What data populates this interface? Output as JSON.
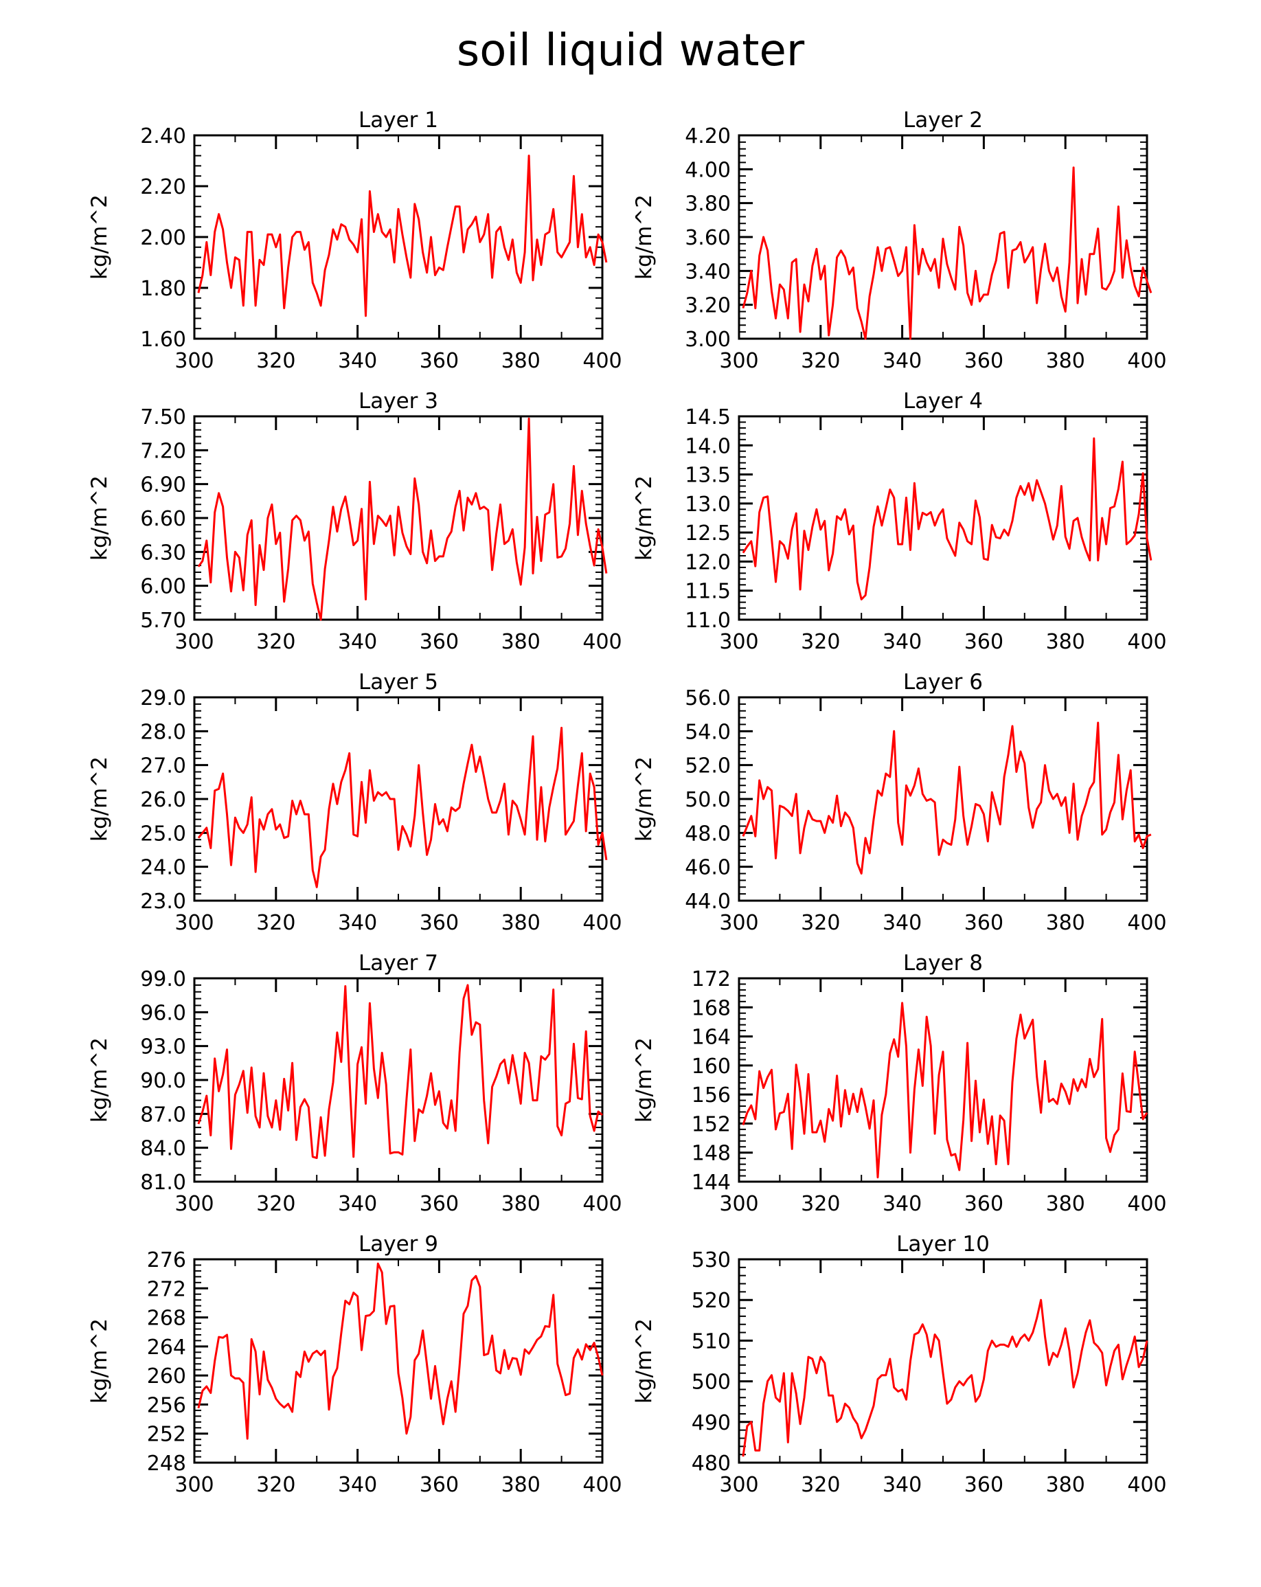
{
  "figure": {
    "title": "soil liquid water",
    "footer": ""
  },
  "colors": {
    "line": "#ff0000",
    "axes": "#000000"
  },
  "chart_data": [
    {
      "type": "line",
      "title": "Layer 1",
      "ylabel": "kg/m^2",
      "xlim": [
        300,
        400
      ],
      "ylim": [
        1.6,
        2.4
      ],
      "xticks": [
        300,
        320,
        340,
        360,
        380,
        400
      ],
      "yticks": [
        "1.60",
        "1.80",
        "2.00",
        "2.20",
        "2.40"
      ],
      "x_start": 301,
      "x_step": 1,
      "values": [
        1.78,
        1.85,
        1.98,
        1.85,
        2.02,
        2.09,
        2.03,
        1.9,
        1.8,
        1.92,
        1.91,
        1.73,
        2.02,
        2.02,
        1.73,
        1.91,
        1.89,
        2.01,
        2.01,
        1.96,
        2.01,
        1.72,
        1.88,
        2.0,
        2.02,
        2.02,
        1.95,
        1.98,
        1.82,
        1.78,
        1.73,
        1.87,
        1.93,
        2.03,
        1.99,
        2.05,
        2.04,
        1.99,
        1.97,
        1.94,
        2.07,
        1.69,
        2.18,
        2.02,
        2.09,
        2.02,
        2.0,
        2.03,
        1.9,
        2.11,
        2.01,
        1.92,
        1.84,
        2.13,
        2.07,
        1.94,
        1.86,
        2.0,
        1.85,
        1.88,
        1.87,
        1.96,
        2.04,
        2.12,
        2.12,
        1.94,
        2.03,
        2.05,
        2.08,
        1.98,
        2.01,
        2.09,
        1.84,
        2.02,
        2.04,
        1.96,
        1.91,
        1.99,
        1.86,
        1.82,
        1.94,
        2.32,
        1.83,
        1.99,
        1.89,
        2.01,
        2.02,
        2.11,
        1.94,
        1.92,
        1.95,
        1.98,
        2.24,
        1.96,
        2.09,
        1.92,
        1.96,
        1.89,
        2.01,
        1.98,
        1.9
      ]
    },
    {
      "type": "line",
      "title": "Layer 2",
      "ylabel": "kg/m^2",
      "xlim": [
        300,
        400
      ],
      "ylim": [
        3.0,
        4.2
      ],
      "xticks": [
        300,
        320,
        340,
        360,
        380,
        400
      ],
      "yticks": [
        "3.00",
        "3.20",
        "3.40",
        "3.60",
        "3.80",
        "4.00",
        "4.20"
      ],
      "x_start": 301,
      "x_step": 1,
      "values": [
        3.18,
        3.27,
        3.4,
        3.18,
        3.49,
        3.6,
        3.52,
        3.28,
        3.12,
        3.32,
        3.29,
        3.12,
        3.45,
        3.47,
        3.04,
        3.32,
        3.22,
        3.43,
        3.53,
        3.35,
        3.43,
        3.02,
        3.2,
        3.48,
        3.52,
        3.48,
        3.38,
        3.42,
        3.18,
        3.1,
        3.0,
        3.25,
        3.38,
        3.54,
        3.4,
        3.53,
        3.54,
        3.46,
        3.37,
        3.4,
        3.54,
        3.0,
        3.67,
        3.38,
        3.53,
        3.45,
        3.4,
        3.47,
        3.3,
        3.59,
        3.44,
        3.36,
        3.29,
        3.66,
        3.55,
        3.27,
        3.2,
        3.4,
        3.22,
        3.26,
        3.26,
        3.38,
        3.46,
        3.62,
        3.63,
        3.3,
        3.52,
        3.53,
        3.57,
        3.45,
        3.49,
        3.54,
        3.21,
        3.41,
        3.56,
        3.4,
        3.34,
        3.42,
        3.25,
        3.16,
        3.45,
        4.01,
        3.21,
        3.47,
        3.26,
        3.5,
        3.5,
        3.65,
        3.3,
        3.29,
        3.33,
        3.4,
        3.78,
        3.36,
        3.58,
        3.42,
        3.31,
        3.25,
        3.42,
        3.34,
        3.27
      ]
    },
    {
      "type": "line",
      "title": "Layer 3",
      "ylabel": "kg/m^2",
      "xlim": [
        300,
        400
      ],
      "ylim": [
        5.7,
        7.5
      ],
      "xticks": [
        300,
        320,
        340,
        360,
        380,
        400
      ],
      "yticks": [
        "5.70",
        "6.00",
        "6.30",
        "6.60",
        "6.90",
        "7.20",
        "7.50"
      ],
      "x_start": 301,
      "x_step": 1,
      "values": [
        6.17,
        6.22,
        6.4,
        6.03,
        6.65,
        6.82,
        6.7,
        6.25,
        5.95,
        6.3,
        6.25,
        5.96,
        6.45,
        6.58,
        5.83,
        6.36,
        6.14,
        6.6,
        6.72,
        6.37,
        6.47,
        5.86,
        6.15,
        6.58,
        6.62,
        6.58,
        6.4,
        6.48,
        6.02,
        5.85,
        5.7,
        6.15,
        6.4,
        6.7,
        6.48,
        6.68,
        6.79,
        6.59,
        6.36,
        6.4,
        6.68,
        5.88,
        6.92,
        6.37,
        6.62,
        6.58,
        6.53,
        6.62,
        6.27,
        6.7,
        6.47,
        6.35,
        6.28,
        6.95,
        6.72,
        6.3,
        6.2,
        6.49,
        6.22,
        6.26,
        6.26,
        6.42,
        6.48,
        6.7,
        6.84,
        6.49,
        6.78,
        6.72,
        6.82,
        6.68,
        6.7,
        6.67,
        6.14,
        6.46,
        6.72,
        6.37,
        6.4,
        6.5,
        6.21,
        6.01,
        6.34,
        7.48,
        6.11,
        6.61,
        6.22,
        6.63,
        6.65,
        6.9,
        6.25,
        6.26,
        6.33,
        6.55,
        7.06,
        6.45,
        6.84,
        6.55,
        6.35,
        6.18,
        6.5,
        6.34,
        6.11
      ]
    },
    {
      "type": "line",
      "title": "Layer 4",
      "ylabel": "kg/m^2",
      "xlim": [
        300,
        400
      ],
      "ylim": [
        11.0,
        14.5
      ],
      "xticks": [
        300,
        320,
        340,
        360,
        380,
        400
      ],
      "yticks": [
        "11.0",
        "11.5",
        "12.0",
        "12.5",
        "13.0",
        "13.5",
        "14.0",
        "14.5"
      ],
      "x_start": 301,
      "x_step": 1,
      "values": [
        12.15,
        12.26,
        12.35,
        11.92,
        12.85,
        13.1,
        13.12,
        12.4,
        11.65,
        12.35,
        12.28,
        12.05,
        12.56,
        12.83,
        11.52,
        12.53,
        12.2,
        12.6,
        12.9,
        12.55,
        12.7,
        11.85,
        12.14,
        12.78,
        12.72,
        12.9,
        12.47,
        12.62,
        11.65,
        11.35,
        11.42,
        11.9,
        12.6,
        12.95,
        12.62,
        12.92,
        13.24,
        13.1,
        12.3,
        12.3,
        13.1,
        12.2,
        13.35,
        12.56,
        12.84,
        12.8,
        12.85,
        12.62,
        12.8,
        12.9,
        12.4,
        12.25,
        12.1,
        12.67,
        12.55,
        12.35,
        12.3,
        13.05,
        12.76,
        12.05,
        12.03,
        12.63,
        12.42,
        12.4,
        12.55,
        12.45,
        12.7,
        13.1,
        13.3,
        13.15,
        13.35,
        13.05,
        13.4,
        13.2,
        13.0,
        12.7,
        12.38,
        12.62,
        13.3,
        12.43,
        12.22,
        12.7,
        12.75,
        12.42,
        12.2,
        12.02,
        14.12,
        12.02,
        12.75,
        12.3,
        12.92,
        12.95,
        13.25,
        13.72,
        12.3,
        12.36,
        12.45,
        12.82,
        13.52,
        12.4,
        12.02
      ]
    },
    {
      "type": "line",
      "title": "Layer 5",
      "ylabel": "kg/m^2",
      "xlim": [
        300,
        400
      ],
      "ylim": [
        23.0,
        29.0
      ],
      "xticks": [
        300,
        320,
        340,
        360,
        380,
        400
      ],
      "yticks": [
        "23.0",
        "24.0",
        "25.0",
        "26.0",
        "27.0",
        "28.0",
        "29.0"
      ],
      "x_start": 301,
      "x_step": 1,
      "values": [
        24.85,
        25.0,
        25.15,
        24.55,
        26.25,
        26.3,
        26.75,
        25.55,
        24.05,
        25.45,
        25.15,
        25.0,
        25.25,
        26.05,
        23.85,
        25.4,
        25.1,
        25.55,
        25.7,
        25.1,
        25.25,
        24.85,
        24.9,
        25.95,
        25.55,
        25.95,
        25.55,
        25.55,
        23.9,
        23.4,
        24.3,
        24.5,
        25.7,
        26.45,
        25.85,
        26.5,
        26.85,
        27.35,
        24.95,
        24.9,
        26.5,
        25.3,
        26.85,
        25.95,
        26.2,
        26.1,
        26.2,
        26.0,
        26.0,
        24.5,
        25.2,
        24.95,
        24.6,
        25.5,
        27.0,
        25.6,
        24.35,
        24.8,
        25.85,
        25.25,
        25.4,
        25.05,
        25.75,
        25.65,
        25.75,
        26.45,
        27.05,
        27.6,
        26.8,
        27.25,
        26.65,
        26.0,
        25.6,
        25.6,
        25.95,
        26.45,
        24.95,
        25.95,
        25.8,
        25.4,
        24.95,
        26.45,
        27.85,
        24.8,
        26.35,
        24.75,
        25.75,
        26.35,
        26.9,
        28.1,
        24.95,
        25.15,
        25.35,
        26.4,
        27.35,
        25.05,
        26.75,
        26.35,
        24.65,
        25.0,
        24.2
      ]
    },
    {
      "type": "line",
      "title": "Layer 6",
      "ylabel": "kg/m^2",
      "xlim": [
        300,
        400
      ],
      "ylim": [
        44.0,
        56.0
      ],
      "xticks": [
        300,
        320,
        340,
        360,
        380,
        400
      ],
      "yticks": [
        "44.0",
        "46.0",
        "48.0",
        "50.0",
        "52.0",
        "54.0",
        "56.0"
      ],
      "x_start": 301,
      "x_step": 1,
      "values": [
        47.8,
        48.4,
        49.0,
        47.8,
        51.1,
        50.0,
        50.7,
        50.5,
        46.5,
        49.6,
        49.5,
        49.3,
        49.0,
        50.3,
        46.8,
        48.3,
        49.3,
        48.8,
        48.7,
        48.7,
        48.0,
        49.0,
        48.6,
        50.2,
        48.4,
        49.2,
        48.9,
        48.3,
        46.2,
        45.6,
        47.7,
        46.8,
        48.8,
        50.5,
        50.2,
        51.5,
        51.3,
        54.0,
        48.6,
        47.3,
        50.8,
        50.2,
        50.8,
        51.8,
        50.3,
        49.9,
        50.0,
        49.8,
        46.7,
        47.6,
        47.4,
        47.3,
        48.8,
        51.9,
        49.0,
        47.3,
        48.4,
        49.7,
        49.6,
        49.1,
        47.5,
        50.4,
        49.5,
        48.5,
        51.3,
        52.6,
        54.3,
        51.6,
        52.8,
        52.1,
        49.5,
        48.3,
        49.4,
        49.8,
        52.0,
        50.5,
        50.0,
        50.3,
        49.6,
        50.1,
        48.0,
        50.9,
        47.6,
        49.0,
        49.7,
        50.6,
        51.0,
        54.5,
        47.9,
        48.2,
        49.2,
        49.8,
        52.6,
        48.8,
        50.5,
        51.7,
        47.5,
        47.9,
        47.1,
        47.8,
        47.9
      ]
    },
    {
      "type": "line",
      "title": "Layer 7",
      "ylabel": "kg/m^2",
      "xlim": [
        300,
        400
      ],
      "ylim": [
        81.0,
        99.0
      ],
      "xticks": [
        300,
        320,
        340,
        360,
        380,
        400
      ],
      "yticks": [
        "81.0",
        "84.0",
        "87.0",
        "90.0",
        "93.0",
        "96.0",
        "99.0"
      ],
      "x_start": 301,
      "x_step": 1,
      "values": [
        86.1,
        87.2,
        88.6,
        85.1,
        91.9,
        89.0,
        90.5,
        92.7,
        83.9,
        88.7,
        89.6,
        90.8,
        87.1,
        91.1,
        86.8,
        85.8,
        90.6,
        86.8,
        85.8,
        88.2,
        85.6,
        90.1,
        87.3,
        91.5,
        84.7,
        87.6,
        88.3,
        87.6,
        83.2,
        83.1,
        86.7,
        83.3,
        87.4,
        89.8,
        94.2,
        91.6,
        98.3,
        90.3,
        83.2,
        91.4,
        92.9,
        87.9,
        96.8,
        91.0,
        88.4,
        92.4,
        89.6,
        83.5,
        83.6,
        83.6,
        83.4,
        88.3,
        92.7,
        84.6,
        87.4,
        87.1,
        88.6,
        90.6,
        87.8,
        89.0,
        86.2,
        85.7,
        88.2,
        85.5,
        92.4,
        97.2,
        98.4,
        94.0,
        95.1,
        94.9,
        88.2,
        84.4,
        89.4,
        90.3,
        91.4,
        91.8,
        89.7,
        92.2,
        90.2,
        87.9,
        92.4,
        91.5,
        88.2,
        88.2,
        92.1,
        91.8,
        92.3,
        98.0,
        85.9,
        85.1,
        87.9,
        88.1,
        93.2,
        88.4,
        88.3,
        94.3,
        86.8,
        85.5,
        87.2,
        86.9
      ]
    },
    {
      "type": "line",
      "title": "Layer 8",
      "ylabel": "kg/m^2",
      "xlim": [
        300,
        400
      ],
      "ylim": [
        144,
        172
      ],
      "xticks": [
        300,
        320,
        340,
        360,
        380,
        400
      ],
      "yticks": [
        "144",
        "148",
        "152",
        "156",
        "160",
        "164",
        "168",
        "172"
      ],
      "x_start": 301,
      "x_step": 1,
      "values": [
        151.8,
        153.5,
        154.5,
        152.6,
        159.2,
        156.9,
        158.4,
        159.4,
        151.2,
        153.4,
        153.6,
        156.1,
        148.5,
        160.1,
        156.4,
        150.6,
        158.8,
        150.8,
        150.8,
        152.4,
        149.5,
        154.0,
        152.4,
        158.6,
        151.6,
        156.6,
        153.3,
        156.1,
        153.6,
        156.8,
        154.3,
        151.3,
        155.2,
        144.6,
        153.2,
        156.0,
        161.7,
        163.6,
        161.2,
        168.6,
        162.6,
        148.0,
        156.7,
        162.2,
        157.2,
        166.7,
        162.7,
        150.6,
        158.7,
        161.9,
        149.8,
        147.6,
        147.8,
        145.6,
        152.5,
        163.1,
        149.6,
        157.9,
        150.8,
        155.3,
        149.2,
        153.0,
        146.4,
        153.1,
        152.4,
        146.4,
        157.7,
        163.7,
        167.0,
        163.7,
        165.0,
        166.3,
        158.5,
        153.5,
        160.6,
        155.0,
        155.4,
        154.7,
        157.5,
        156.4,
        154.7,
        158.1,
        156.5,
        158.1,
        157.0,
        160.9,
        158.4,
        159.5,
        166.4,
        150.0,
        148.1,
        150.4,
        151.2,
        158.9,
        153.7,
        153.6,
        161.9,
        157.3,
        152.6,
        153.5
      ]
    },
    {
      "type": "line",
      "title": "Layer 9",
      "ylabel": "kg/m^2",
      "xlim": [
        300,
        400
      ],
      "ylim": [
        248,
        276
      ],
      "xticks": [
        300,
        320,
        340,
        360,
        380,
        400
      ],
      "yticks": [
        "248",
        "252",
        "256",
        "260",
        "264",
        "268",
        "272",
        "276"
      ],
      "x_start": 301,
      "x_step": 1,
      "values": [
        255.5,
        257.9,
        258.5,
        257.6,
        262.0,
        265.3,
        265.2,
        265.6,
        260.0,
        259.6,
        259.6,
        259.0,
        251.3,
        265.0,
        263.3,
        257.4,
        263.3,
        259.4,
        258.3,
        256.8,
        256.1,
        255.6,
        256.1,
        255.0,
        260.5,
        259.8,
        263.3,
        261.9,
        263.0,
        263.4,
        262.8,
        263.4,
        255.3,
        259.8,
        261.0,
        265.8,
        270.3,
        269.8,
        271.4,
        270.9,
        263.5,
        268.2,
        268.3,
        268.9,
        275.4,
        274.2,
        267.1,
        269.5,
        269.6,
        260.3,
        256.9,
        252.0,
        254.3,
        262.1,
        263.0,
        266.2,
        261.5,
        256.8,
        261.3,
        257.1,
        253.3,
        256.8,
        259.2,
        255.0,
        261.3,
        268.5,
        269.6,
        273.1,
        273.7,
        272.2,
        262.8,
        263.0,
        265.5,
        260.7,
        260.3,
        263.5,
        260.9,
        262.4,
        262.3,
        260.1,
        263.6,
        263.0,
        263.9,
        264.9,
        265.4,
        266.8,
        266.7,
        271.1,
        261.6,
        259.6,
        257.3,
        257.5,
        262.4,
        263.6,
        262.2,
        264.3,
        263.5,
        264.5,
        262.5,
        260.0
      ]
    },
    {
      "type": "line",
      "title": "Layer 10",
      "ylabel": "kg/m^2",
      "xlim": [
        300,
        400
      ],
      "ylim": [
        480,
        530
      ],
      "xticks": [
        300,
        320,
        340,
        360,
        380,
        400
      ],
      "yticks": [
        "480",
        "490",
        "500",
        "510",
        "520",
        "530"
      ],
      "x_start": 301,
      "x_step": 1,
      "values": [
        481.5,
        489.0,
        490.0,
        483.0,
        483.0,
        494.5,
        500.0,
        501.5,
        496.0,
        495.0,
        502.0,
        485.0,
        502.0,
        497.0,
        489.5,
        496.0,
        506.0,
        505.5,
        502.0,
        506.0,
        504.5,
        496.5,
        496.5,
        490.0,
        491.0,
        494.5,
        493.5,
        491.0,
        489.5,
        486.0,
        488.0,
        491.0,
        494.0,
        500.5,
        501.5,
        501.5,
        505.5,
        498.5,
        497.5,
        498.0,
        495.5,
        505.0,
        511.5,
        512.0,
        514.0,
        511.5,
        506.0,
        511.5,
        510.0,
        502.0,
        494.5,
        495.5,
        498.5,
        500.0,
        499.0,
        500.5,
        501.5,
        495.0,
        496.5,
        500.5,
        507.5,
        510.0,
        508.5,
        509.0,
        509.0,
        508.5,
        511.0,
        508.5,
        510.5,
        511.5,
        510.0,
        512.0,
        515.5,
        520.0,
        511.0,
        504.0,
        507.0,
        506.0,
        509.0,
        513.0,
        507.5,
        498.5,
        502.0,
        507.5,
        512.0,
        515.0,
        509.5,
        508.5,
        507.0,
        499.0,
        503.5,
        507.5,
        509.0,
        500.5,
        504.0,
        507.0,
        511.0,
        503.5,
        505.5,
        510.0
      ]
    }
  ]
}
